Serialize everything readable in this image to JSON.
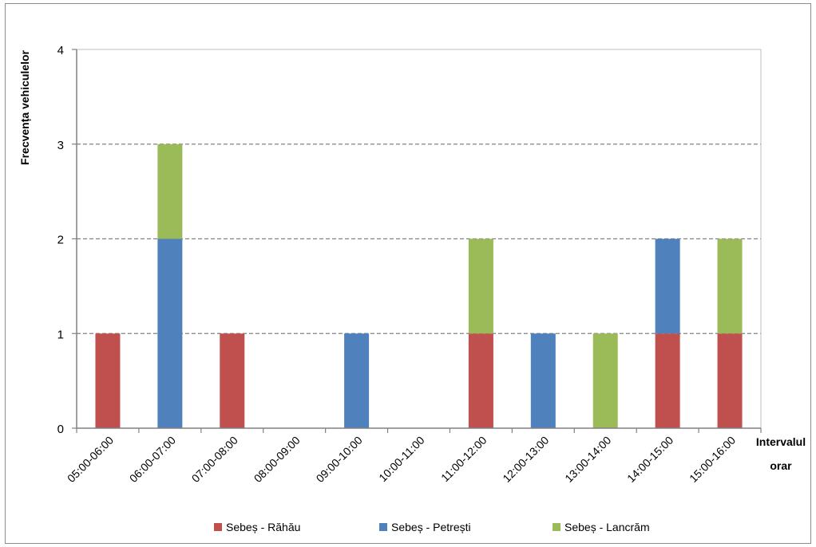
{
  "chart_data": {
    "type": "bar",
    "stacked": true,
    "title": "",
    "ylabel": "Frecvența vehiculelor",
    "xlabel_lines": [
      "Intervalul",
      "orar"
    ],
    "ylim": [
      0,
      4
    ],
    "yticks": [
      0,
      1,
      2,
      3,
      4
    ],
    "grid": "dashed-horizontal",
    "legend": "bottom",
    "categories": [
      "05:00-06:00",
      "06:00-07:00",
      "07:00-08:00",
      "08:00-09:00",
      "09:00-10:00",
      "10:00-11:00",
      "11:00-12:00",
      "12:00-13:00",
      "13:00-14:00",
      "14:00-15:00",
      "15:00-16:00"
    ],
    "series": [
      {
        "name": "Sebeș - Răhău",
        "color": "#c0504d",
        "values": [
          1,
          0,
          1,
          0,
          0,
          0,
          1,
          0,
          0,
          1,
          1
        ]
      },
      {
        "name": "Sebeș - Petrești",
        "color": "#4f81bd",
        "values": [
          0,
          2,
          0,
          0,
          1,
          0,
          0,
          1,
          0,
          1,
          0
        ]
      },
      {
        "name": "Sebeș - Lancrăm",
        "color": "#9bbb59",
        "values": [
          0,
          1,
          0,
          0,
          0,
          0,
          1,
          0,
          1,
          0,
          1
        ]
      }
    ]
  }
}
